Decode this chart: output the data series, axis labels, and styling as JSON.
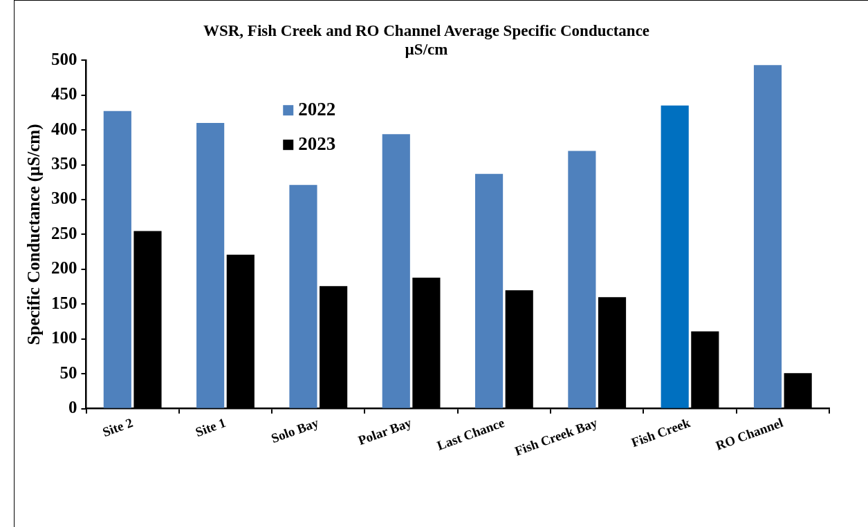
{
  "chart_data": {
    "type": "bar",
    "title": "WSR, Fish Creek and RO Channel Average Specific Conductance",
    "subtitle": "µS/cm",
    "ylabel": "Specific Conductance (µS/cm)",
    "categories": [
      "Site 2",
      "Site 1",
      "Solo Bay",
      "Polar Bay",
      "Last Chance",
      "Fish Creek Bay",
      "Fish Creek",
      "RO Channel"
    ],
    "series": [
      {
        "name": "2022",
        "color": "#4f81bd",
        "colors": [
          "#4f81bd",
          "#4f81bd",
          "#4f81bd",
          "#4f81bd",
          "#4f81bd",
          "#4f81bd",
          "#0070c0",
          "#4f81bd"
        ],
        "values": [
          427,
          410,
          321,
          394,
          337,
          370,
          435,
          493
        ]
      },
      {
        "name": "2023",
        "color": "#000000",
        "values": [
          255,
          221,
          176,
          188,
          170,
          160,
          111,
          51
        ]
      }
    ],
    "ylim": [
      0,
      500
    ],
    "yticks": [
      0,
      50,
      100,
      150,
      200,
      250,
      300,
      350,
      400,
      450,
      500
    ],
    "grid": false,
    "legend": "top left"
  }
}
